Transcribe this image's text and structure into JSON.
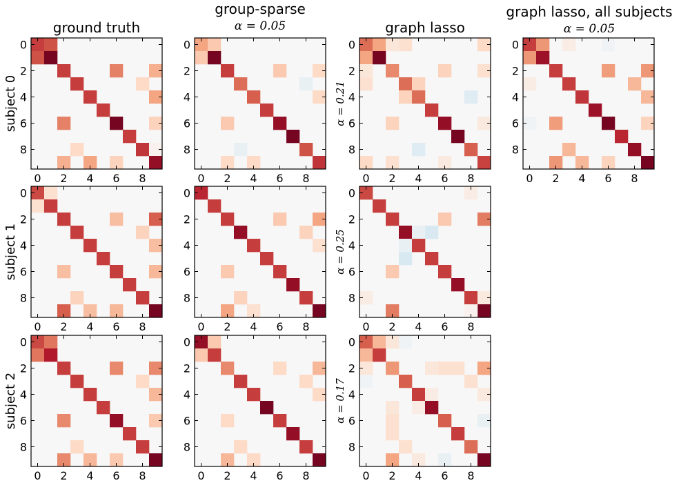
{
  "figure": {
    "col_titles": [
      {
        "line1": "ground truth",
        "line2": ""
      },
      {
        "line1": "group-sparse",
        "line2": "α = 0.05"
      },
      {
        "line1": "graph lasso",
        "line2": ""
      },
      {
        "line1": "graph lasso, all subjects",
        "line2": "α = 0.05"
      }
    ],
    "row_labels": [
      "subject 0",
      "subject 1",
      "subject 2"
    ],
    "alpha_labels": [
      "α = 0.21",
      "α = 0.25",
      "α = 0.17"
    ],
    "tick_labels": [
      "0",
      "2",
      "4",
      "6",
      "8"
    ]
  },
  "chart_data": [
    {
      "type": "heatmap",
      "panel": "subject 0 / ground truth",
      "size": 10,
      "colormap": "RdBu_r",
      "vmin": -1,
      "vmax": 1,
      "cells": [
        [
          0,
          0,
          0.62
        ],
        [
          0,
          1,
          0.55
        ],
        [
          1,
          0,
          0.55
        ],
        [
          1,
          1,
          0.95
        ],
        [
          2,
          2,
          0.62
        ],
        [
          2,
          6,
          0.38
        ],
        [
          6,
          2,
          0.38
        ],
        [
          2,
          9,
          0.22
        ],
        [
          9,
          2,
          0.22
        ],
        [
          3,
          3,
          0.62
        ],
        [
          4,
          4,
          0.62
        ],
        [
          4,
          9,
          0.25
        ],
        [
          9,
          4,
          0.25
        ],
        [
          5,
          5,
          0.62
        ],
        [
          6,
          6,
          0.95
        ],
        [
          6,
          9,
          0.12
        ],
        [
          9,
          6,
          0.12
        ],
        [
          7,
          7,
          0.62
        ],
        [
          8,
          8,
          0.65
        ],
        [
          8,
          3,
          0.1
        ],
        [
          3,
          8,
          0.1
        ],
        [
          8,
          9,
          0.02
        ],
        [
          9,
          9,
          0.85
        ]
      ]
    },
    {
      "type": "heatmap",
      "panel": "subject 0 / group-sparse",
      "size": 10,
      "colormap": "RdBu_r",
      "vmin": -1,
      "vmax": 1,
      "cells": [
        [
          0,
          0,
          0.25
        ],
        [
          0,
          1,
          0.15
        ],
        [
          1,
          0,
          0.15
        ],
        [
          1,
          1,
          0.95
        ],
        [
          2,
          2,
          0.62
        ],
        [
          2,
          6,
          0.15
        ],
        [
          6,
          2,
          0.15
        ],
        [
          2,
          9,
          0.1
        ],
        [
          9,
          2,
          0.1
        ],
        [
          3,
          3,
          0.45
        ],
        [
          3,
          8,
          -0.04
        ],
        [
          8,
          3,
          -0.04
        ],
        [
          4,
          4,
          0.5
        ],
        [
          4,
          9,
          0.1
        ],
        [
          9,
          4,
          0.1
        ],
        [
          5,
          5,
          0.62
        ],
        [
          6,
          6,
          0.85
        ],
        [
          7,
          7,
          0.95
        ],
        [
          8,
          8,
          0.55
        ],
        [
          9,
          9,
          0.65
        ]
      ]
    },
    {
      "type": "heatmap",
      "panel": "subject 0 / graph lasso",
      "size": 10,
      "colormap": "RdBu_r",
      "vmin": -1,
      "vmax": 1,
      "cells": [
        [
          0,
          0,
          0.45
        ],
        [
          0,
          1,
          0.25
        ],
        [
          1,
          0,
          0.25
        ],
        [
          1,
          1,
          0.95
        ],
        [
          0,
          3,
          0.08
        ],
        [
          3,
          0,
          0.08
        ],
        [
          0,
          9,
          0.1
        ],
        [
          9,
          0,
          0.1
        ],
        [
          2,
          2,
          0.35
        ],
        [
          2,
          6,
          0.12
        ],
        [
          6,
          2,
          0.12
        ],
        [
          2,
          9,
          0.08
        ],
        [
          9,
          2,
          0.08
        ],
        [
          2,
          0,
          0.06
        ],
        [
          0,
          2,
          0.06
        ],
        [
          3,
          3,
          0.45
        ],
        [
          3,
          4,
          0.12
        ],
        [
          4,
          3,
          0.12
        ],
        [
          4,
          4,
          0.45
        ],
        [
          4,
          8,
          -0.06
        ],
        [
          8,
          4,
          -0.06
        ],
        [
          5,
          5,
          0.62
        ],
        [
          6,
          6,
          0.85
        ],
        [
          6,
          9,
          0.05
        ],
        [
          9,
          6,
          0.05
        ],
        [
          7,
          7,
          0.95
        ],
        [
          8,
          8,
          0.5
        ],
        [
          9,
          9,
          0.6
        ]
      ]
    },
    {
      "type": "heatmap",
      "panel": "graph lasso, all subjects",
      "size": 10,
      "colormap": "RdBu_r",
      "vmin": -1,
      "vmax": 1,
      "cells": [
        [
          0,
          0,
          0.62
        ],
        [
          0,
          1,
          0.3
        ],
        [
          1,
          0,
          0.3
        ],
        [
          1,
          1,
          0.82
        ],
        [
          0,
          3,
          0.04
        ],
        [
          3,
          0,
          0.04
        ],
        [
          0,
          6,
          -0.02
        ],
        [
          6,
          0,
          -0.02
        ],
        [
          2,
          2,
          0.62
        ],
        [
          2,
          6,
          0.28
        ],
        [
          6,
          2,
          0.28
        ],
        [
          2,
          9,
          0.3
        ],
        [
          9,
          2,
          0.3
        ],
        [
          3,
          3,
          0.62
        ],
        [
          3,
          8,
          0.2
        ],
        [
          8,
          3,
          0.2
        ],
        [
          4,
          4,
          0.65
        ],
        [
          4,
          9,
          0.2
        ],
        [
          9,
          4,
          0.2
        ],
        [
          5,
          5,
          0.82
        ],
        [
          6,
          6,
          0.95
        ],
        [
          6,
          9,
          0.12
        ],
        [
          9,
          6,
          0.12
        ],
        [
          7,
          7,
          0.7
        ],
        [
          8,
          8,
          0.85
        ],
        [
          9,
          9,
          0.95
        ]
      ]
    },
    {
      "type": "heatmap",
      "panel": "subject 1 / ground truth",
      "size": 10,
      "colormap": "RdBu_r",
      "vmin": -1,
      "vmax": 1,
      "cells": [
        [
          0,
          0,
          0.58
        ],
        [
          0,
          1,
          0.08
        ],
        [
          1,
          0,
          0.08
        ],
        [
          1,
          1,
          0.62
        ],
        [
          2,
          2,
          0.62
        ],
        [
          2,
          6,
          0.18
        ],
        [
          6,
          2,
          0.18
        ],
        [
          2,
          9,
          0.5
        ],
        [
          9,
          2,
          0.5
        ],
        [
          3,
          3,
          0.62
        ],
        [
          3,
          8,
          0.12
        ],
        [
          8,
          3,
          0.12
        ],
        [
          4,
          4,
          0.62
        ],
        [
          4,
          9,
          0.18
        ],
        [
          9,
          4,
          0.18
        ],
        [
          5,
          5,
          0.62
        ],
        [
          6,
          6,
          0.62
        ],
        [
          6,
          9,
          0.2
        ],
        [
          9,
          6,
          0.2
        ],
        [
          7,
          7,
          0.62
        ],
        [
          8,
          8,
          0.62
        ],
        [
          9,
          9,
          0.95
        ]
      ]
    },
    {
      "type": "heatmap",
      "panel": "subject 1 / group-sparse",
      "size": 10,
      "colormap": "RdBu_r",
      "vmin": -1,
      "vmax": 1,
      "cells": [
        [
          0,
          0,
          0.7
        ],
        [
          1,
          1,
          0.62
        ],
        [
          2,
          2,
          0.62
        ],
        [
          2,
          6,
          0.15
        ],
        [
          6,
          2,
          0.15
        ],
        [
          2,
          9,
          0.25
        ],
        [
          9,
          2,
          0.25
        ],
        [
          3,
          3,
          0.85
        ],
        [
          3,
          8,
          0.12
        ],
        [
          8,
          3,
          0.12
        ],
        [
          4,
          4,
          0.62
        ],
        [
          4,
          9,
          0.08
        ],
        [
          9,
          4,
          0.08
        ],
        [
          5,
          5,
          0.62
        ],
        [
          6,
          6,
          0.62
        ],
        [
          7,
          7,
          0.85
        ],
        [
          8,
          8,
          0.62
        ],
        [
          9,
          9,
          0.95
        ]
      ]
    },
    {
      "type": "heatmap",
      "panel": "subject 1 / graph lasso",
      "size": 10,
      "colormap": "RdBu_r",
      "vmin": -1,
      "vmax": 1,
      "cells": [
        [
          0,
          0,
          0.58
        ],
        [
          1,
          1,
          0.62
        ],
        [
          2,
          2,
          0.62
        ],
        [
          2,
          6,
          0.15
        ],
        [
          6,
          2,
          0.15
        ],
        [
          2,
          9,
          0.4
        ],
        [
          9,
          2,
          0.4
        ],
        [
          3,
          3,
          0.85
        ],
        [
          3,
          5,
          -0.08
        ],
        [
          5,
          3,
          -0.08
        ],
        [
          3,
          4,
          -0.04
        ],
        [
          4,
          3,
          -0.04
        ],
        [
          4,
          4,
          0.62
        ],
        [
          5,
          5,
          0.62
        ],
        [
          6,
          6,
          0.62
        ],
        [
          7,
          7,
          0.85
        ],
        [
          8,
          8,
          0.62
        ],
        [
          8,
          9,
          0.05
        ],
        [
          9,
          8,
          0.05
        ],
        [
          9,
          9,
          0.95
        ],
        [
          8,
          0,
          0.04
        ],
        [
          0,
          8,
          0.04
        ],
        [
          9,
          8,
          0.02
        ]
      ]
    },
    {
      "type": "heatmap",
      "panel": "subject 2 / ground truth",
      "size": 10,
      "colormap": "RdBu_r",
      "vmin": -1,
      "vmax": 1,
      "cells": [
        [
          0,
          0,
          0.58
        ],
        [
          0,
          1,
          0.42
        ],
        [
          1,
          0,
          0.42
        ],
        [
          1,
          1,
          0.75
        ],
        [
          2,
          2,
          0.62
        ],
        [
          2,
          6,
          0.35
        ],
        [
          6,
          2,
          0.35
        ],
        [
          2,
          9,
          0.35
        ],
        [
          9,
          2,
          0.35
        ],
        [
          3,
          3,
          0.62
        ],
        [
          3,
          8,
          0.1
        ],
        [
          8,
          3,
          0.1
        ],
        [
          4,
          4,
          0.62
        ],
        [
          4,
          9,
          0.2
        ],
        [
          9,
          4,
          0.2
        ],
        [
          5,
          5,
          0.62
        ],
        [
          6,
          6,
          0.85
        ],
        [
          6,
          9,
          0.15
        ],
        [
          9,
          6,
          0.15
        ],
        [
          7,
          7,
          0.62
        ],
        [
          8,
          8,
          0.62
        ],
        [
          9,
          9,
          0.95
        ]
      ]
    },
    {
      "type": "heatmap",
      "panel": "subject 2 / group-sparse",
      "size": 10,
      "colormap": "RdBu_r",
      "vmin": -1,
      "vmax": 1,
      "cells": [
        [
          0,
          0,
          0.85
        ],
        [
          0,
          1,
          0.15
        ],
        [
          1,
          0,
          0.15
        ],
        [
          1,
          1,
          0.62
        ],
        [
          2,
          2,
          0.35
        ],
        [
          2,
          6,
          0.1
        ],
        [
          6,
          2,
          0.1
        ],
        [
          2,
          9,
          0.2
        ],
        [
          9,
          2,
          0.2
        ],
        [
          3,
          3,
          0.62
        ],
        [
          3,
          8,
          0.1
        ],
        [
          8,
          3,
          0.1
        ],
        [
          4,
          4,
          0.62
        ],
        [
          4,
          9,
          0.1
        ],
        [
          9,
          4,
          0.1
        ],
        [
          5,
          5,
          0.95
        ],
        [
          6,
          6,
          0.62
        ],
        [
          7,
          7,
          0.85
        ],
        [
          8,
          8,
          0.62
        ],
        [
          9,
          9,
          0.95
        ]
      ]
    },
    {
      "type": "heatmap",
      "panel": "subject 2 / graph lasso",
      "size": 10,
      "colormap": "RdBu_r",
      "vmin": -1,
      "vmax": 1,
      "cells": [
        [
          0,
          0,
          0.5
        ],
        [
          0,
          1,
          0.2
        ],
        [
          1,
          0,
          0.2
        ],
        [
          1,
          1,
          0.62
        ],
        [
          0,
          3,
          -0.02
        ],
        [
          3,
          0,
          -0.02
        ],
        [
          2,
          2,
          0.3
        ],
        [
          2,
          6,
          0.08
        ],
        [
          6,
          2,
          0.08
        ],
        [
          2,
          7,
          0.08
        ],
        [
          7,
          2,
          0.08
        ],
        [
          2,
          9,
          0.25
        ],
        [
          9,
          2,
          0.25
        ],
        [
          2,
          0,
          0.06
        ],
        [
          0,
          2,
          0.06
        ],
        [
          3,
          3,
          0.5
        ],
        [
          3,
          8,
          0.08
        ],
        [
          8,
          3,
          0.08
        ],
        [
          4,
          4,
          0.62
        ],
        [
          4,
          9,
          0.05
        ],
        [
          9,
          4,
          0.05
        ],
        [
          4,
          5,
          0.04
        ],
        [
          5,
          4,
          0.04
        ],
        [
          5,
          5,
          0.85
        ],
        [
          6,
          6,
          0.5
        ],
        [
          6,
          9,
          -0.04
        ],
        [
          9,
          6,
          -0.04
        ],
        [
          7,
          7,
          0.62
        ],
        [
          8,
          8,
          0.45
        ],
        [
          9,
          9,
          0.95
        ],
        [
          2,
          5,
          0.06
        ],
        [
          5,
          2,
          0.06
        ]
      ]
    }
  ]
}
